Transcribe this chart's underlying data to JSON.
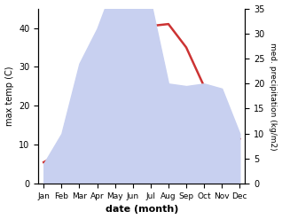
{
  "months": [
    "Jan",
    "Feb",
    "Mar",
    "Apr",
    "May",
    "Jun",
    "Jul",
    "Aug",
    "Sep",
    "Oct",
    "Nov",
    "Dec"
  ],
  "max_temp": [
    5.5,
    8.0,
    14.0,
    21.0,
    28.0,
    31.5,
    40.5,
    41.0,
    35.0,
    25.0,
    14.5,
    11.5
  ],
  "precipitation": [
    4.0,
    10.0,
    24.0,
    31.0,
    40.5,
    37.0,
    36.5,
    20.0,
    19.5,
    20.0,
    19.0,
    10.0
  ],
  "temp_color": "#cc3333",
  "precip_color_fill": "#c8d0f0",
  "temp_ylim": [
    0,
    45
  ],
  "precip_ylim": [
    0,
    35
  ],
  "temp_yticks": [
    0,
    10,
    20,
    30,
    40
  ],
  "precip_yticks": [
    0,
    5,
    10,
    15,
    20,
    25,
    30,
    35
  ],
  "xlabel": "date (month)",
  "ylabel_left": "max temp (C)",
  "ylabel_right": "med. precipitation (kg/m2)",
  "bg_color": "#ffffff"
}
